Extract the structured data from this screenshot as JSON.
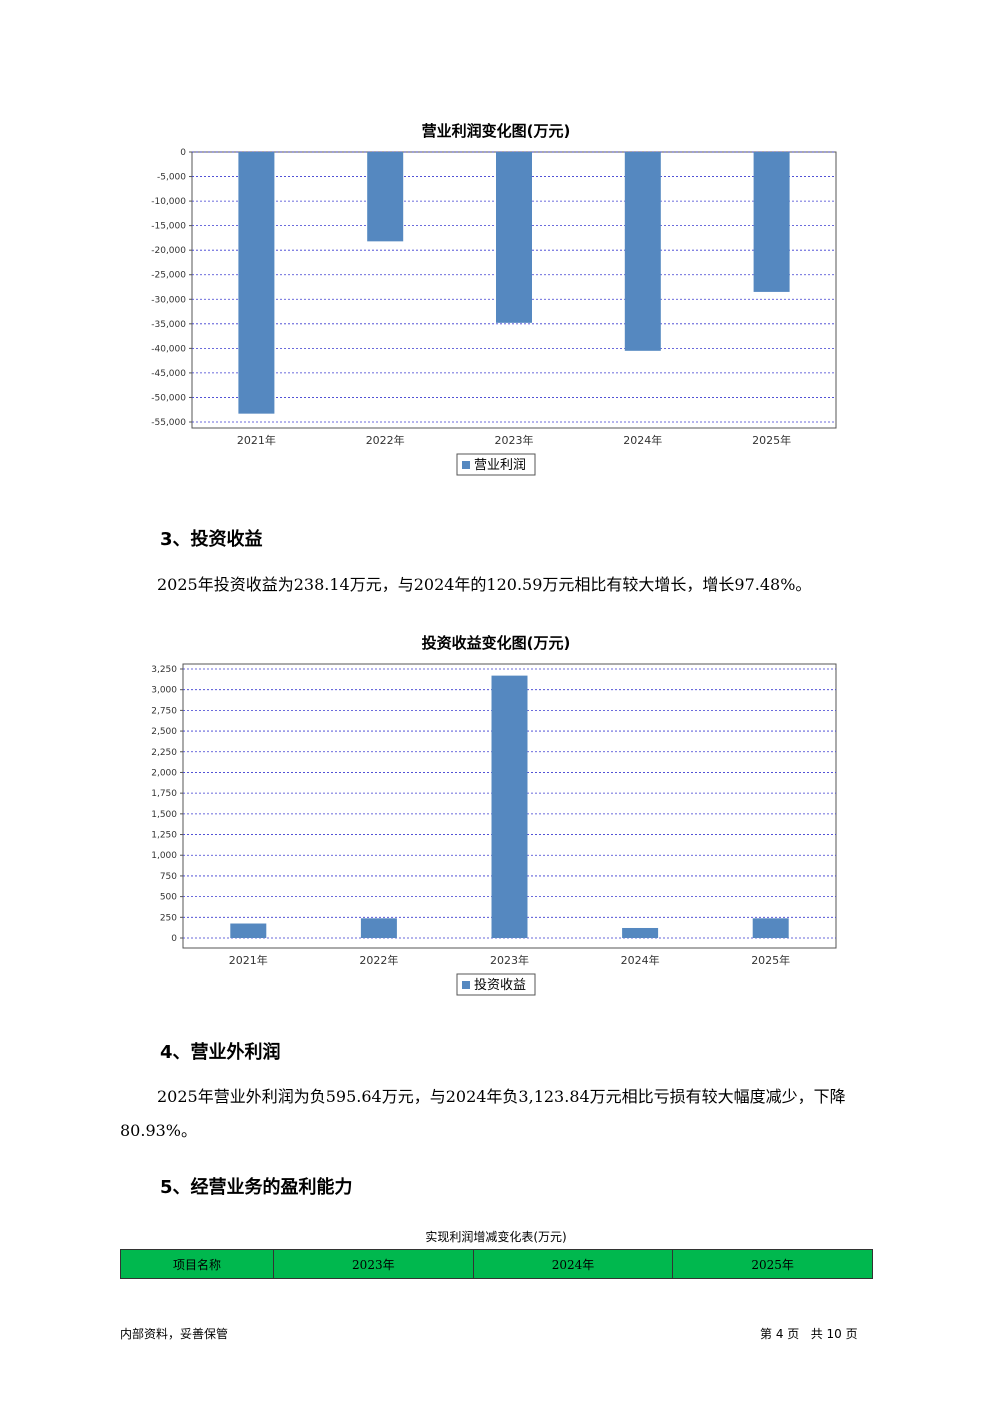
{
  "charts": [
    {
      "title": "营业利润变化图(万元)",
      "chart_data": {
        "type": "bar",
        "categories": [
          "2021年",
          "2022年",
          "2023年",
          "2024年",
          "2025年"
        ],
        "series": [
          {
            "name": "营业利润",
            "values": [
              -53300,
              -18200,
              -34800,
              -40500,
              -28500
            ]
          }
        ],
        "ylim": [
          -55000,
          0
        ],
        "yticks": [
          0,
          -5000,
          -10000,
          -15000,
          -20000,
          -25000,
          -30000,
          -35000,
          -40000,
          -45000,
          -50000,
          -55000
        ],
        "ytick_labels": [
          "0",
          "-5,000",
          "-10,000",
          "-15,000",
          "-20,000",
          "-25,000",
          "-30,000",
          "-35,000",
          "-40,000",
          "-45,000",
          "-50,000",
          "-55,000"
        ],
        "grid": true,
        "legend": "bottom",
        "bar_color": "#5588c0"
      }
    },
    {
      "title": "投资收益变化图(万元)",
      "chart_data": {
        "type": "bar",
        "categories": [
          "2021年",
          "2022年",
          "2023年",
          "2024年",
          "2025年"
        ],
        "series": [
          {
            "name": "投资收益",
            "values": [
              175,
              238,
              3170,
              121,
              238
            ]
          }
        ],
        "ylim": [
          0,
          3250
        ],
        "yticks": [
          0,
          250,
          500,
          750,
          1000,
          1250,
          1500,
          1750,
          2000,
          2250,
          2500,
          2750,
          3000,
          3250
        ],
        "ytick_labels": [
          "0",
          "250",
          "500",
          "750",
          "1,000",
          "1,250",
          "1,500",
          "1,750",
          "2,000",
          "2,250",
          "2,500",
          "2,750",
          "3,000",
          "3,250"
        ],
        "grid": true,
        "legend": "bottom",
        "bar_color": "#5588c0"
      }
    }
  ],
  "sections": {
    "s3_heading": "3、投资收益",
    "s3_text": "2025年投资收益为238.14万元，与2024年的120.59万元相比有较大增长，增长97.48%。",
    "s4_heading": "4、营业外利润",
    "s4_text": "2025年营业外利润为负595.64万元，与2024年负3,123.84万元相比亏损有较大幅度减少，下降80.93%。",
    "s5_heading": "5、经营业务的盈利能力"
  },
  "table": {
    "title": "实现利润增减变化表(万元)",
    "headers": [
      "项目名称",
      "2023年",
      "2024年",
      "2025年"
    ],
    "header_color": "#00b84e"
  },
  "footer": {
    "left": "内部资料，妥善保管",
    "right": "第 4 页   共 10 页"
  }
}
